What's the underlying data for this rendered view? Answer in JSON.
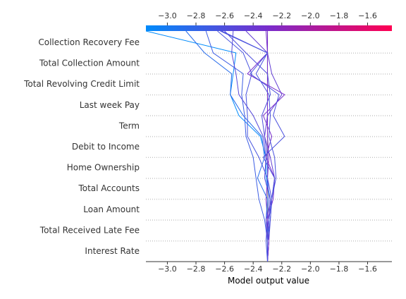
{
  "chart_data": {
    "type": "line",
    "xlabel": "Model output value",
    "xlim": [
      -3.15,
      -1.43
    ],
    "xticks": [
      -3.0,
      -2.8,
      -2.6,
      -2.4,
      -2.2,
      -2.0,
      -1.8,
      -1.6
    ],
    "base_value": -2.3,
    "features": [
      "Collection Recovery Fee",
      "Total Collection Amount",
      "Total Revolving Credit Limit",
      "Last week Pay",
      "Term",
      "Debit to Income",
      "Home Ownership",
      "Total Accounts",
      "Loan Amount",
      "Total Received Late Fee",
      "Interest Rate"
    ],
    "colorbar": {
      "low_color": "#008bfb",
      "mid_color": "#7a2ccb",
      "high_color": "#ff0052"
    },
    "series": [
      {
        "values": [
          -2.3,
          -2.29,
          -2.3,
          -2.31,
          -2.3,
          -2.29,
          -2.3,
          -2.3,
          -2.3,
          -2.3,
          -2.3,
          -2.3
        ]
      },
      {
        "values": [
          -2.3,
          -2.3,
          -2.29,
          -2.28,
          -2.31,
          -2.31,
          -2.35,
          -2.5,
          -2.56,
          -2.54,
          -2.52,
          -3.15
        ]
      },
      {
        "values": [
          -2.3,
          -2.29,
          -2.31,
          -2.3,
          -2.37,
          -2.32,
          -2.34,
          -2.47,
          -2.56,
          -2.55,
          -2.74,
          -2.87
        ]
      },
      {
        "values": [
          -2.3,
          -2.3,
          -2.32,
          -2.36,
          -2.38,
          -2.4,
          -2.45,
          -2.46,
          -2.48,
          -2.47,
          -2.68,
          -2.73
        ]
      },
      {
        "values": [
          -2.3,
          -2.3,
          -2.29,
          -2.28,
          -2.32,
          -2.31,
          -2.33,
          -2.4,
          -2.5,
          -2.52,
          -2.55,
          -2.54
        ]
      },
      {
        "values": [
          -2.3,
          -2.31,
          -2.3,
          -2.29,
          -2.3,
          -2.36,
          -2.44,
          -2.44,
          -2.45,
          -2.41,
          -2.47,
          -2.65
        ]
      },
      {
        "values": [
          -2.3,
          -2.29,
          -2.28,
          -2.27,
          -2.3,
          -2.3,
          -2.32,
          -2.34,
          -2.28,
          -2.3,
          -2.45,
          -2.6
        ]
      },
      {
        "values": [
          -2.3,
          -2.3,
          -2.31,
          -2.27,
          -2.25,
          -2.28,
          -2.32,
          -2.3,
          -2.2,
          -2.27,
          -2.3,
          -2.45
        ]
      },
      {
        "values": [
          -2.3,
          -2.29,
          -2.3,
          -2.26,
          -2.25,
          -2.31,
          -2.27,
          -2.33,
          -2.18,
          -2.44,
          -2.3,
          -2.31
        ]
      },
      {
        "values": [
          -2.3,
          -2.3,
          -2.28,
          -2.27,
          -2.25,
          -2.33,
          -2.18,
          -2.26,
          -2.22,
          -2.42,
          -2.3,
          -2.62
        ]
      },
      {
        "values": [
          -2.3,
          -2.3,
          -2.29,
          -2.27,
          -2.24,
          -2.25,
          -2.29,
          -2.28,
          -2.29,
          -2.38,
          -2.3,
          -2.63
        ]
      }
    ]
  }
}
